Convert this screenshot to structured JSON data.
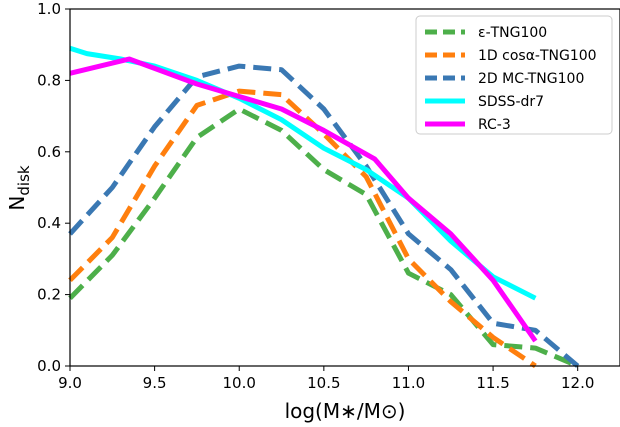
{
  "chart_data": {
    "type": "line",
    "xlabel": "log(M∗/M⊙)",
    "ylabel": "N_disk",
    "ylabel_main": "N",
    "ylabel_sub": "disk",
    "xlim": [
      9.0,
      12.25
    ],
    "ylim": [
      0.0,
      1.0
    ],
    "x_ticks": [
      9.0,
      9.5,
      10.0,
      10.5,
      11.0,
      11.5,
      12.0
    ],
    "x_tick_labels": [
      "9.0",
      "9.5",
      "10.0",
      "10.5",
      "11.0",
      "11.5",
      "12.0"
    ],
    "y_ticks": [
      0.0,
      0.2,
      0.4,
      0.6,
      0.8,
      1.0
    ],
    "y_tick_labels": [
      "0.0",
      "0.2",
      "0.4",
      "0.6",
      "0.8",
      "1.0"
    ],
    "grid": false,
    "legend_position": "top-right",
    "series": [
      {
        "name": "ε-TNG100",
        "color": "#4daf4a",
        "dash": "dashed",
        "x": [
          9.0,
          9.25,
          9.5,
          9.75,
          10.0,
          10.25,
          10.5,
          10.75,
          11.0,
          11.25,
          11.5,
          11.75,
          12.0
        ],
        "y": [
          0.19,
          0.31,
          0.47,
          0.64,
          0.72,
          0.66,
          0.55,
          0.48,
          0.26,
          0.2,
          0.06,
          0.05,
          0.0
        ]
      },
      {
        "name": "1D cosα-TNG100",
        "color": "#ff7f0e",
        "dash": "dashed",
        "x": [
          9.0,
          9.25,
          9.5,
          9.75,
          10.0,
          10.25,
          10.5,
          10.75,
          11.0,
          11.25,
          11.5,
          11.75
        ],
        "y": [
          0.24,
          0.36,
          0.56,
          0.73,
          0.77,
          0.76,
          0.65,
          0.53,
          0.3,
          0.18,
          0.08,
          0.0
        ]
      },
      {
        "name": "2D MC-TNG100",
        "color": "#3a78b3",
        "dash": "dashed",
        "x": [
          9.0,
          9.25,
          9.5,
          9.75,
          10.0,
          10.25,
          10.5,
          10.75,
          11.0,
          11.25,
          11.5,
          11.75,
          12.0
        ],
        "y": [
          0.37,
          0.5,
          0.67,
          0.81,
          0.84,
          0.83,
          0.72,
          0.56,
          0.37,
          0.27,
          0.12,
          0.1,
          0.0
        ]
      },
      {
        "name": "SDSS-dr7",
        "color": "#00ffff",
        "dash": "solid",
        "x": [
          9.0,
          9.1,
          9.3,
          9.5,
          9.75,
          10.0,
          10.25,
          10.5,
          10.75,
          11.0,
          11.25,
          11.5,
          11.75
        ],
        "y": [
          0.89,
          0.875,
          0.86,
          0.84,
          0.8,
          0.75,
          0.69,
          0.61,
          0.55,
          0.47,
          0.35,
          0.25,
          0.19
        ]
      },
      {
        "name": "RC-3",
        "color": "#ff00ff",
        "dash": "solid",
        "x": [
          9.0,
          9.35,
          9.75,
          10.0,
          10.25,
          10.5,
          10.8,
          11.0,
          11.25,
          11.5,
          11.75
        ],
        "y": [
          0.82,
          0.86,
          0.79,
          0.755,
          0.72,
          0.66,
          0.58,
          0.47,
          0.37,
          0.24,
          0.07
        ]
      }
    ]
  }
}
